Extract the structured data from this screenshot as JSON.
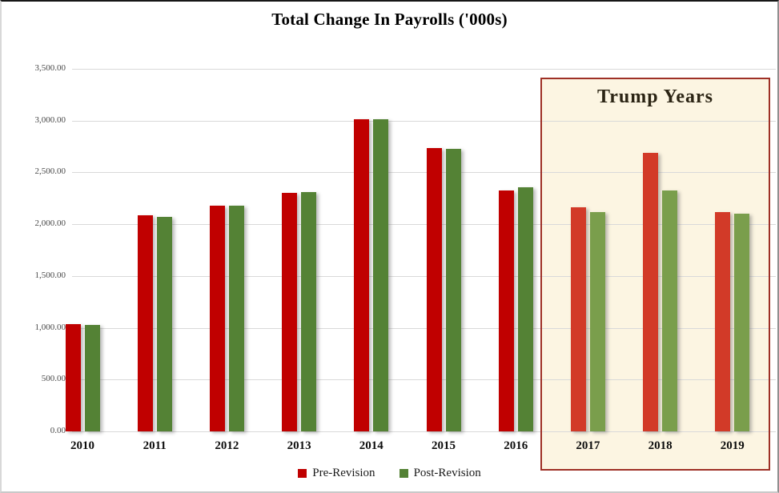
{
  "chart_data": {
    "type": "bar",
    "title": "Total Change In Payrolls ('000s)",
    "xlabel": "",
    "ylabel": "",
    "categories": [
      "2010",
      "2011",
      "2012",
      "2013",
      "2014",
      "2015",
      "2016",
      "2017",
      "2018",
      "2019"
    ],
    "series": [
      {
        "name": "Pre-Revision",
        "color": "#C00000",
        "highlight_color": "#D23A28",
        "values": [
          1035,
          2085,
          2175,
          2305,
          3015,
          2735,
          2325,
          2165,
          2690,
          2115
        ]
      },
      {
        "name": "Post-Revision",
        "color": "#548235",
        "highlight_color": "#7A9E4C",
        "values": [
          1030,
          2070,
          2180,
          2310,
          3015,
          2725,
          2355,
          2120,
          2325,
          2105
        ]
      }
    ],
    "ylim": [
      0,
      3500
    ],
    "grid": true,
    "legend_position": "bottom",
    "yticks": [
      {
        "value": 0,
        "label": "0.00"
      },
      {
        "value": 500,
        "label": "500.00"
      },
      {
        "value": 1000,
        "label": "1,000.00"
      },
      {
        "value": 1500,
        "label": "1,500.00"
      },
      {
        "value": 2000,
        "label": "2,000.00"
      },
      {
        "value": 2500,
        "label": "2,500.00"
      },
      {
        "value": 3000,
        "label": "3,000.00"
      },
      {
        "value": 3500,
        "label": "3,500.00"
      }
    ],
    "annotation": {
      "label": "Trump Years",
      "categories": [
        "2017",
        "2018",
        "2019"
      ],
      "fill": "#FCF5E2",
      "border": "#9E3026"
    }
  }
}
